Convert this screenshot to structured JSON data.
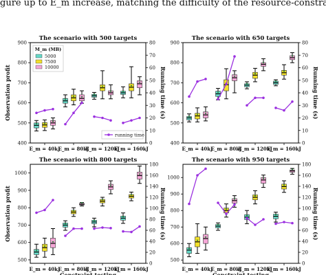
{
  "caption": "gure up to E_m increase, matching the difficulty of the resource-constrained EOS scheduling problem.",
  "chart_data": [
    {
      "type": "box",
      "title": "The scenario with 500 targets",
      "xlabel": "",
      "ylabel": "Observation profit",
      "y2label": "Running time (s)",
      "categories": [
        "E_m = 40kJ",
        "E_m = 80kJ",
        "E_m = 120kJ",
        "E_m = 160kJ"
      ],
      "ylim": [
        400,
        900
      ],
      "yticks": [
        400,
        500,
        600,
        700,
        800,
        900
      ],
      "y2lim": [
        0,
        80
      ],
      "y2ticks": [
        0,
        10,
        20,
        30,
        40,
        50,
        60,
        70,
        80
      ],
      "legend": {
        "title": "M_m (MB)",
        "entries": [
          "5000",
          "7500",
          "10000"
        ],
        "position": "top-left",
        "line_label": "running time",
        "line_position": "bottom-right"
      },
      "box_series": [
        {
          "name": "5000",
          "boxes": [
            [
              460,
              475,
              488,
              500,
              512
            ],
            [
              580,
              598,
              610,
              622,
              640
            ],
            [
              618,
              628,
              635,
              642,
              652
            ],
            [
              625,
              642,
              650,
              658,
              680
            ]
          ]
        },
        {
          "name": "7500",
          "boxes": [
            [
              462,
              478,
              490,
              502,
              515
            ],
            [
              590,
              610,
              625,
              640,
              668
            ],
            [
              620,
              660,
              675,
              690,
              760
            ],
            [
              625,
              660,
              678,
              695,
              780
            ]
          ]
        },
        {
          "name": "10000",
          "boxes": [
            [
              470,
              488,
              500,
              512,
              525
            ],
            [
              598,
              610,
              622,
              640,
              660
            ],
            [
              620,
              640,
              650,
              660,
              690
            ],
            [
              640,
              675,
              695,
              710,
              730
            ]
          ]
        }
      ],
      "line_series": {
        "name": "running time",
        "values": [
          [
            24,
            26,
            27
          ],
          [
            15,
            24,
            32
          ],
          [
            21,
            20,
            18
          ],
          [
            16,
            18,
            20
          ]
        ]
      }
    },
    {
      "type": "box",
      "title": "The scenario with 650 targets",
      "xlabel": "",
      "ylabel": "",
      "y2label": "Running time (s)",
      "categories": [
        "E_m = 40kJ",
        "E_m = 80kJ",
        "E_m = 120kJ",
        "E_m = 160kJ"
      ],
      "ylim": [
        400,
        900
      ],
      "yticks": [
        400,
        500,
        600,
        700,
        800,
        900
      ],
      "y2lim": [
        0,
        80
      ],
      "y2ticks": [
        0,
        10,
        20,
        30,
        40,
        50,
        60,
        70,
        80
      ],
      "box_series": [
        {
          "name": "5000",
          "boxes": [
            [
              505,
              515,
              525,
              532,
              545
            ],
            [
              615,
              632,
              645,
              658,
              672
            ],
            [
              670,
              680,
              688,
              695,
              705
            ],
            [
              685,
              692,
              700,
              708,
              715
            ]
          ]
        },
        {
          "name": "7500",
          "boxes": [
            [
              505,
              520,
              535,
              548,
              575
            ],
            [
              620,
              660,
              690,
              715,
              770
            ],
            [
              705,
              722,
              738,
              752,
              772
            ],
            [
              718,
              738,
              750,
              762,
              790
            ]
          ]
        },
        {
          "name": "10000",
          "boxes": [
            [
              510,
              525,
              540,
              555,
              580
            ],
            [
              650,
              710,
              725,
              740,
              760
            ],
            [
              760,
              782,
              792,
              800,
              820
            ],
            [
              800,
              815,
              825,
              835,
              850
            ]
          ]
        }
      ],
      "line_series": {
        "name": "running time",
        "values": [
          [
            37,
            49,
            51
          ],
          [
            35,
            47,
            69
          ],
          [
            30,
            36,
            36
          ],
          [
            28,
            26,
            33
          ]
        ]
      }
    },
    {
      "type": "box",
      "title": "The scenario with 800 targets",
      "xlabel": "Constraint testing",
      "ylabel": "Observation profit",
      "y2label": "Running time (s)",
      "categories": [
        "E_m = 40kJ",
        "E_m = 80kJ",
        "E_m = 120kJ",
        "E_m = 160kJ"
      ],
      "ylim": [
        480,
        1050
      ],
      "yticks": [
        500,
        600,
        700,
        800,
        900,
        1000
      ],
      "y2lim": [
        0,
        180
      ],
      "y2ticks": [
        0,
        20,
        40,
        60,
        80,
        100,
        120,
        140,
        160,
        180
      ],
      "box_series": [
        {
          "name": "5000",
          "boxes": [
            [
              515,
              530,
              545,
              560,
              590
            ],
            [
              670,
              688,
              700,
              712,
              725
            ],
            [
              690,
              708,
              718,
              728,
              740
            ],
            [
              710,
              728,
              740,
              752,
              770
            ]
          ]
        },
        {
          "name": "7500",
          "boxes": [
            [
              515,
              550,
              570,
              590,
              625
            ],
            [
              750,
              765,
              775,
              785,
              800
            ],
            [
              810,
              828,
              838,
              848,
              860
            ],
            [
              840,
              856,
              866,
              876,
              890
            ]
          ]
        },
        {
          "name": "10000",
          "boxes": [
            [
              530,
              570,
              595,
              625,
              680
            ],
            [
              810,
              816,
              820,
              825,
              830
            ],
            [
              880,
              905,
              920,
              935,
              955
            ],
            [
              940,
              965,
              985,
              1005,
              1040
            ]
          ]
        }
      ],
      "line_series": {
        "name": "running time",
        "values": [
          [
            92,
            97,
            115
          ],
          [
            50,
            63,
            63
          ],
          [
            63,
            65,
            64
          ],
          [
            58,
            57,
            67
          ]
        ]
      }
    },
    {
      "type": "box",
      "title": "The scenario with 950 targets",
      "xlabel": "Constraint testing",
      "ylabel": "",
      "y2label": "Running time (s)",
      "categories": [
        "E_m = 40kJ",
        "E_m = 80kJ",
        "E_m = 120kJ",
        "E_m = 160kJ"
      ],
      "ylim": [
        480,
        1080
      ],
      "yticks": [
        500,
        600,
        700,
        800,
        900,
        1000
      ],
      "y2lim": [
        0,
        180
      ],
      "y2ticks": [
        0,
        20,
        40,
        60,
        80,
        100,
        120,
        140,
        160,
        180
      ],
      "box_series": [
        {
          "name": "5000",
          "boxes": [
            [
              520,
              540,
              560,
              575,
              600
            ],
            [
              680,
              695,
              705,
              715,
              725
            ],
            [
              720,
              745,
              760,
              775,
              800
            ],
            [
              730,
              750,
              765,
              778,
              790
            ]
          ]
        },
        {
          "name": "7500",
          "boxes": [
            [
              540,
              580,
              610,
              640,
              720
            ],
            [
              760,
              785,
              800,
              815,
              840
            ],
            [
              840,
              865,
              880,
              895,
              920
            ],
            [
              910,
              930,
              945,
              960,
              980
            ]
          ]
        },
        {
          "name": "10000",
          "boxes": [
            [
              560,
              600,
              630,
              655,
              700
            ],
            [
              820,
              845,
              860,
              872,
              890
            ],
            [
              940,
              965,
              985,
              1000,
              1015
            ],
            [
              1020,
              1032,
              1040,
              1046,
              1055
            ]
          ]
        }
      ],
      "line_series": {
        "name": "running time",
        "values": [
          [
            108,
            160,
            172
          ],
          [
            110,
            90,
            107
          ],
          [
            82,
            70,
            80
          ],
          [
            72,
            75,
            73
          ]
        ]
      }
    }
  ]
}
